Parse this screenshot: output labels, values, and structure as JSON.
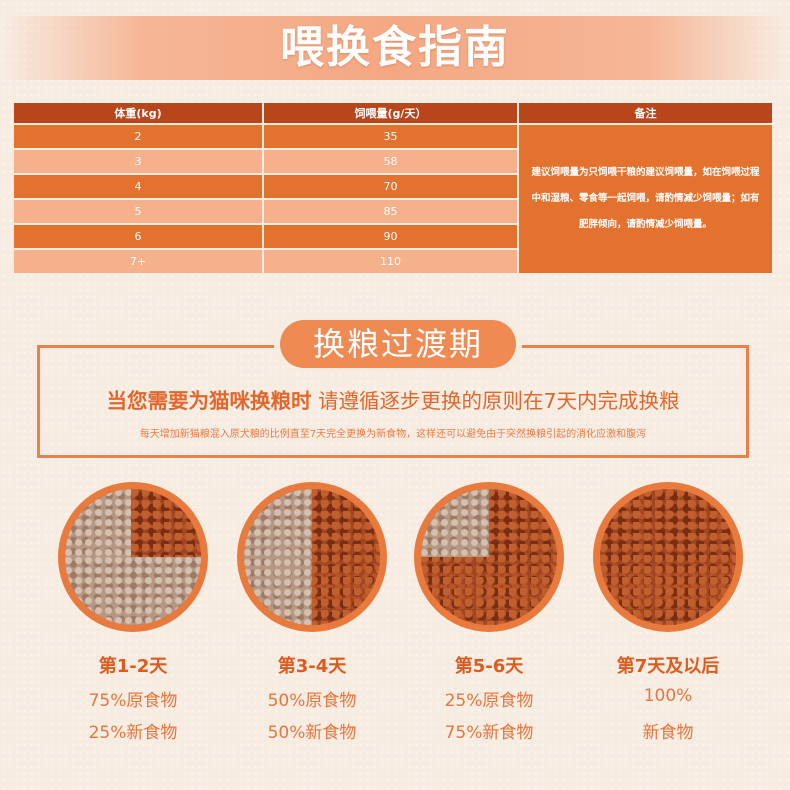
{
  "title": "喂换食指南",
  "table": {
    "headers": [
      "体重(kg)",
      "饲喂量(g/天）",
      "备注"
    ],
    "rows": [
      {
        "weight": "2",
        "amount": "35"
      },
      {
        "weight": "3",
        "amount": "58"
      },
      {
        "weight": "4",
        "amount": "70"
      },
      {
        "weight": "5",
        "amount": "85"
      },
      {
        "weight": "6",
        "amount": "90"
      },
      {
        "weight": "7+",
        "amount": "110"
      }
    ],
    "note": "建议饲喂量为只饲喂干粮的建议饲喂量，如在饲喂过程中和湿粮、零食等一起饲喂，请酌情减少饲喂量；如有肥胖倾向，请酌情减少饲喂量。"
  },
  "transition": {
    "title": "换粮过渡期",
    "main_bold": "当您需要为猫咪换粮时",
    "main_rest": "  请遵循逐步更换的原则在7天内完成换粮",
    "sub": "每天增加新猫粮混入原犬粮的比例直至7天完全更换为新食物，这样还可以避免由于突然换粮引起的消化应激和腹泻"
  },
  "steps": [
    {
      "label": "第1-2天",
      "line1": "75%原食物",
      "line2": "25%新食物",
      "new_fraction": 0.25
    },
    {
      "label": "第3-4天",
      "line1": "50%原食物",
      "line2": "50%新食物",
      "new_fraction": 0.5
    },
    {
      "label": "第5-6天",
      "line1": "25%原食物",
      "line2": "75%新食物",
      "new_fraction": 0.75
    },
    {
      "label": "第7天及以后",
      "line1": "100%",
      "line2": "新食物",
      "new_fraction": 1
    }
  ],
  "colors": {
    "accent": "#e4722f",
    "header": "#b8461a",
    "light_row": "#f5b08c",
    "text_orange": "#e2672c"
  }
}
